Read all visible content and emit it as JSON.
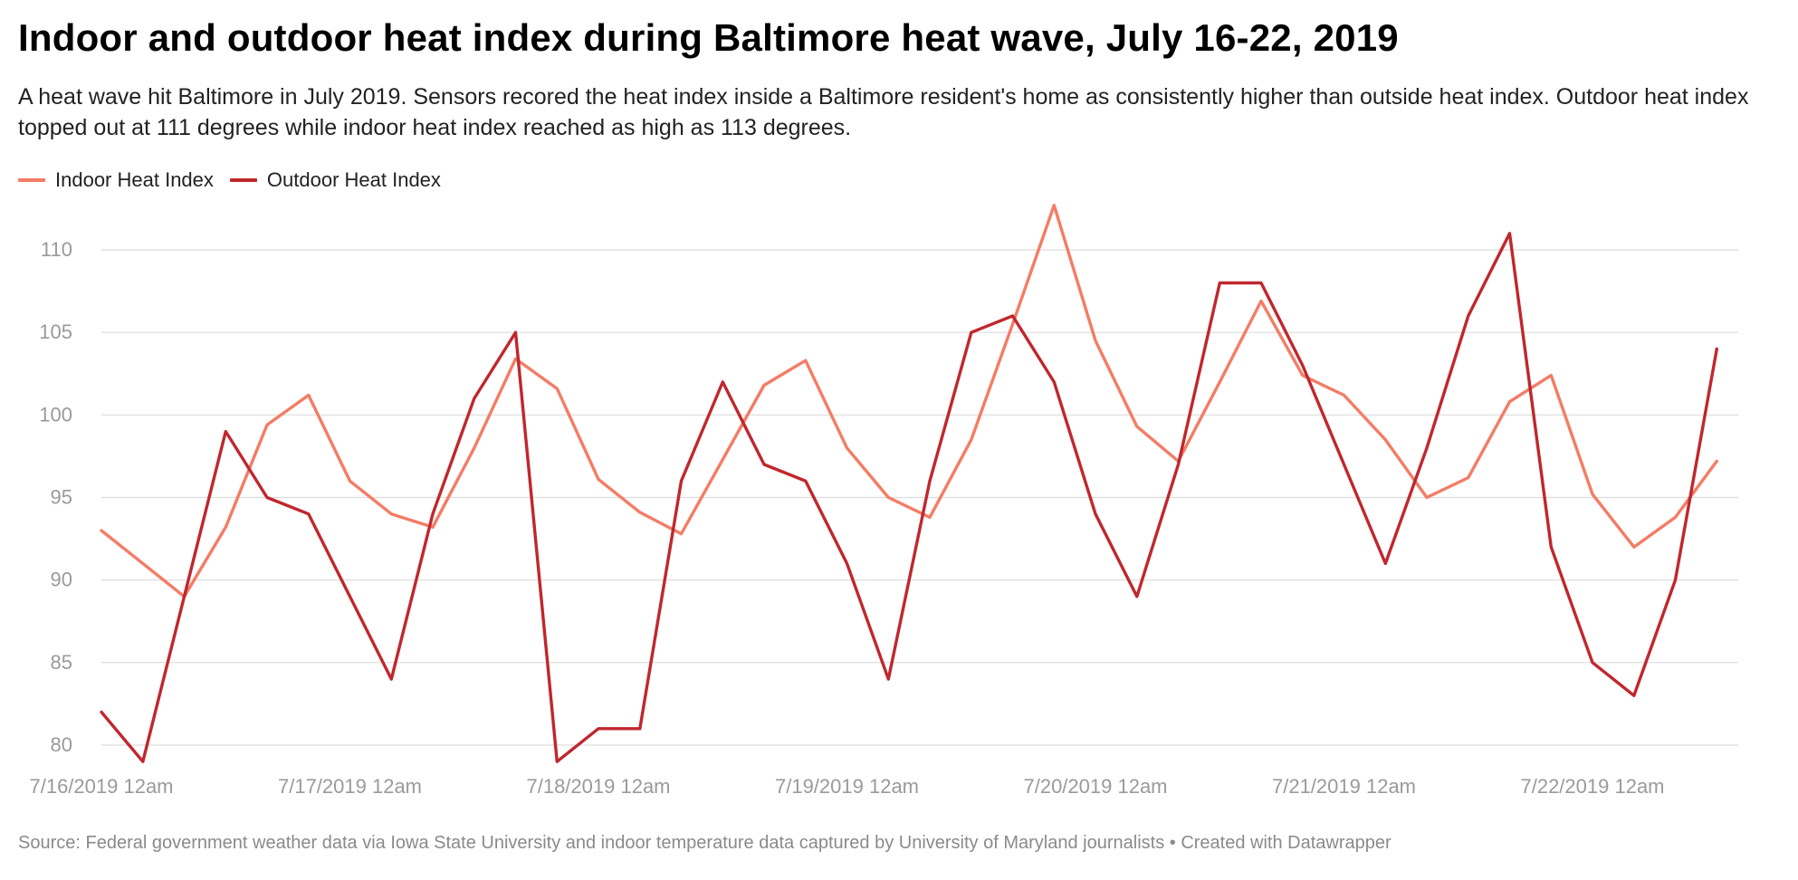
{
  "title": "Indoor and outdoor heat index during Baltimore heat wave, July 16-22, 2019",
  "subtitle": "A heat wave hit Baltimore in July 2019. Sensors recored the heat index inside a Baltimore resident's home as consistently higher than outside heat index. Outdoor heat index topped out at 111 degrees while indoor heat index reached as high as 113 degrees.",
  "footer": "Source: Federal government weather data via Iowa State University and indoor temperature data captured by University of Maryland journalists • Created with Datawrapper",
  "chart_data": {
    "type": "line",
    "xlabel": "",
    "ylabel": "",
    "grid": true,
    "legend": "top-left",
    "ylim": [
      80,
      110
    ],
    "yticks": [
      80,
      85,
      90,
      95,
      100,
      105,
      110
    ],
    "xtick_labels": [
      "7/16/2019 12am",
      "7/17/2019 12am",
      "7/18/2019 12am",
      "7/19/2019 12am",
      "7/20/2019 12am",
      "7/21/2019 12am",
      "7/22/2019 12am"
    ],
    "x": [
      "7/16/2019 12am",
      "7/16/2019 4am",
      "7/16/2019 8am",
      "7/16/2019 12pm",
      "7/16/2019 4pm",
      "7/16/2019 8pm",
      "7/17/2019 12am",
      "7/17/2019 4am",
      "7/17/2019 8am",
      "7/17/2019 12pm",
      "7/17/2019 4pm",
      "7/17/2019 8pm",
      "7/18/2019 12am",
      "7/18/2019 4am",
      "7/18/2019 8am",
      "7/18/2019 12pm",
      "7/18/2019 4pm",
      "7/18/2019 8pm",
      "7/19/2019 12am",
      "7/19/2019 4am",
      "7/19/2019 8am",
      "7/19/2019 12pm",
      "7/19/2019 4pm",
      "7/19/2019 8pm",
      "7/20/2019 12am",
      "7/20/2019 4am",
      "7/20/2019 8am",
      "7/20/2019 12pm",
      "7/20/2019 4pm",
      "7/20/2019 8pm",
      "7/21/2019 12am",
      "7/21/2019 4am",
      "7/21/2019 8am",
      "7/21/2019 12pm",
      "7/21/2019 4pm",
      "7/21/2019 8pm",
      "7/22/2019 12am",
      "7/22/2019 4am",
      "7/22/2019 8am",
      "7/22/2019 12pm"
    ],
    "series": [
      {
        "name": "Indoor Heat Index",
        "color": "#f47c65",
        "values": [
          93,
          91,
          89,
          93.2,
          99.4,
          101.2,
          96,
          94,
          93.2,
          98,
          103.4,
          101.6,
          96.1,
          94.1,
          92.8,
          97.3,
          101.8,
          103.3,
          98,
          95,
          93.8,
          98.5,
          105.5,
          112.7,
          104.5,
          99.3,
          97.2,
          102,
          106.9,
          102.4,
          101.2,
          98.5,
          95,
          96.2,
          100.8,
          102.4,
          95.2,
          92,
          93.8,
          97.2
        ]
      },
      {
        "name": "Outdoor Heat Index",
        "color": "#c0272d",
        "values": [
          82,
          79,
          89,
          99,
          95,
          94,
          89,
          84,
          94,
          101,
          105,
          79,
          81,
          81,
          96,
          102,
          97,
          96,
          91,
          84,
          96,
          105,
          106,
          102,
          94,
          89,
          97,
          108,
          108,
          103,
          97,
          91,
          98,
          106,
          111,
          92,
          85,
          83,
          90,
          104
        ]
      }
    ]
  }
}
